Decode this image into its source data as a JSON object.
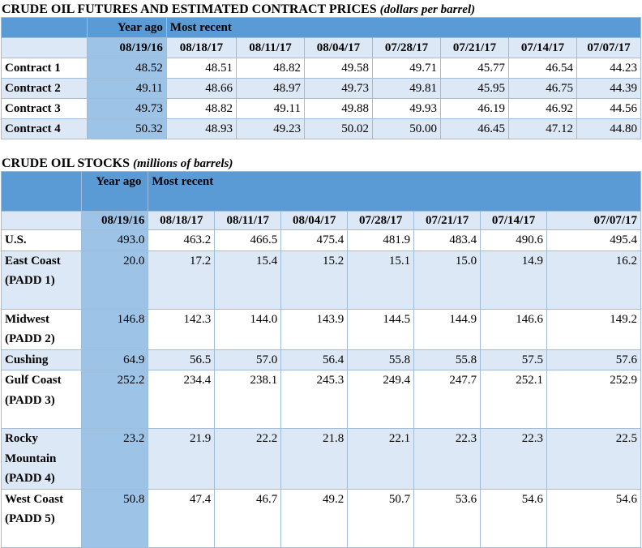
{
  "futures": {
    "title": "CRUDE OIL FUTURES AND ESTIMATED CONTRACT PRICES",
    "unit": "(dollars per barrel)",
    "year_ago_label": "Year ago",
    "most_recent_label": "Most recent",
    "dates": [
      "08/19/16",
      "08/18/17",
      "08/11/17",
      "08/04/17",
      "07/28/17",
      "07/21/17",
      "07/14/17",
      "07/07/17"
    ],
    "rows": [
      {
        "label": "Contract 1",
        "values": [
          "48.52",
          "48.51",
          "48.82",
          "49.58",
          "49.71",
          "45.77",
          "46.54",
          "44.23"
        ]
      },
      {
        "label": "Contract 2",
        "values": [
          "49.11",
          "48.66",
          "48.97",
          "49.73",
          "49.81",
          "45.95",
          "46.75",
          "44.39"
        ]
      },
      {
        "label": "Contract 3",
        "values": [
          "49.73",
          "48.82",
          "49.11",
          "49.88",
          "49.93",
          "46.19",
          "46.92",
          "44.56"
        ]
      },
      {
        "label": "Contract 4",
        "values": [
          "50.32",
          "48.93",
          "49.23",
          "50.02",
          "50.00",
          "46.45",
          "47.12",
          "44.80"
        ]
      }
    ]
  },
  "stocks": {
    "title": "CRUDE OIL STOCKS",
    "unit": "(millions of barrels)",
    "year_ago_label": "Year ago",
    "most_recent_label": "Most recent",
    "dates": [
      "08/19/16",
      "08/18/17",
      "08/11/17",
      "08/04/17",
      "07/28/17",
      "07/21/17",
      "07/14/17",
      "07/07/17"
    ],
    "rows": [
      {
        "label": "U.S.",
        "values": [
          "493.0",
          "463.2",
          "466.5",
          "475.4",
          "481.9",
          "483.4",
          "490.6",
          "495.4"
        ]
      },
      {
        "label": "East Coast (PADD 1)",
        "values": [
          "20.0",
          "17.2",
          "15.4",
          "15.2",
          "15.1",
          "15.0",
          "14.9",
          "16.2"
        ]
      },
      {
        "label": "Midwest (PADD 2)",
        "values": [
          "146.8",
          "142.3",
          "144.0",
          "143.9",
          "144.5",
          "144.9",
          "146.6",
          "149.2"
        ]
      },
      {
        "label": "Cushing",
        "values": [
          "64.9",
          "56.5",
          "57.0",
          "56.4",
          "55.8",
          "55.8",
          "57.5",
          "57.6"
        ]
      },
      {
        "label": "Gulf Coast (PADD 3)",
        "values": [
          "252.2",
          "234.4",
          "238.1",
          "245.3",
          "249.4",
          "247.7",
          "252.1",
          "252.9"
        ]
      },
      {
        "label": "Rocky Mountain (PADD 4)",
        "values": [
          "23.2",
          "21.9",
          "22.2",
          "21.8",
          "22.1",
          "22.3",
          "22.3",
          "22.5"
        ]
      },
      {
        "label": "West Coast (PADD 5)",
        "values": [
          "50.8",
          "47.4",
          "46.7",
          "49.2",
          "50.7",
          "53.6",
          "54.6",
          "54.6"
        ]
      }
    ]
  }
}
